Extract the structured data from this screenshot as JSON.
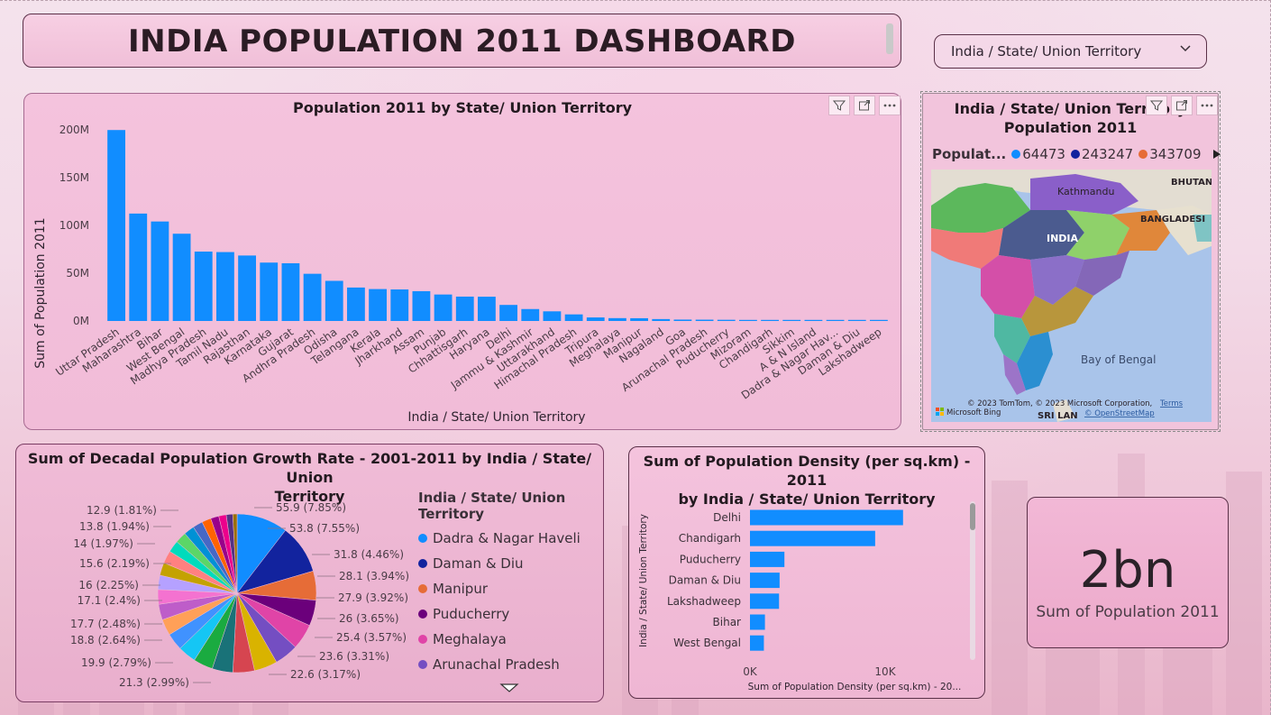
{
  "dashboard": {
    "title": "INDIA POPULATION 2011 DASHBOARD"
  },
  "slicer": {
    "label": "India / State/ Union Territory"
  },
  "bar_chart": {
    "title": "Population 2011 by State/ Union Territory",
    "xlabel": "India / State/ Union Territory",
    "ylabel": "Sum of Population 2011"
  },
  "map": {
    "title_line1": "India / State/ Union Territory",
    "title_line2": "Population 2011",
    "legend_title": "Populat...",
    "legend_items": [
      {
        "label": "64473",
        "color": "#118dff"
      },
      {
        "label": "243247",
        "color": "#12239e"
      },
      {
        "label": "343709",
        "color": "#e66c37"
      }
    ],
    "labels": {
      "kathmandu": "Kathmandu",
      "bhutan": "BHUTAN",
      "india": "INDIA",
      "bangladesh": "BANGLADESI",
      "bay": "Bay of Bengal",
      "srilanka": "SRI LAN"
    },
    "attribution": "© 2023 TomTom, © 2023 Microsoft Corporation,",
    "terms": "Terms",
    "osm": "© OpenStreetMap",
    "bing": "Microsoft Bing"
  },
  "pie_chart": {
    "title_line1": "Sum of Decadal Population Growth Rate - 2001-2011 by India / State/ Union",
    "title_line2": "Territory",
    "legend_title": "India / State/ Union Territory",
    "legend_items": [
      {
        "label": "Dadra & Nagar Haveli",
        "color": "#118dff"
      },
      {
        "label": "Daman & Diu",
        "color": "#12239e"
      },
      {
        "label": "Manipur",
        "color": "#e66c37"
      },
      {
        "label": "Puducherry",
        "color": "#6b007b"
      },
      {
        "label": "Meghalaya",
        "color": "#e044a7"
      },
      {
        "label": "Arunachal Pradesh",
        "color": "#744ec2"
      }
    ],
    "right_labels": [
      "55.9 (7.85%)",
      "53.8 (7.55%)",
      "31.8 (4.46%)",
      "28.1 (3.94%)",
      "27.9 (3.92%)",
      "26 (3.65%)",
      "25.4 (3.57%)",
      "23.6 (3.31%)",
      "22.6 (3.17%)"
    ],
    "left_labels": [
      "12.9 (1.81%)",
      "13.8 (1.94%)",
      "14 (1.97%)",
      "15.6 (2.19%)",
      "16 (2.25%)",
      "17.1 (2.4%)",
      "17.7 (2.48%)",
      "18.8 (2.64%)",
      "19.9 (2.79%)",
      "21.3 (2.99%)"
    ]
  },
  "density_chart": {
    "title_line1": "Sum of Population Density (per sq.km) - 2011",
    "title_line2": "by India / State/ Union Territory",
    "ylabel": "India / State/ Union Territory",
    "xlabel": "Sum of Population Density (per sq.km) - 20...",
    "ticks": [
      "0K",
      "10K"
    ]
  },
  "kpi": {
    "value": "2bn",
    "label": "Sum of Population 2011"
  },
  "chart_data": [
    {
      "type": "bar",
      "title": "Population 2011 by State/ Union Territory",
      "xlabel": "India / State/ Union Territory",
      "ylabel": "Sum of Population 2011",
      "ylim": [
        0,
        200000000
      ],
      "yticks": [
        "0M",
        "50M",
        "100M",
        "150M",
        "200M"
      ],
      "grid": false,
      "color": "#118dff",
      "categories": [
        "Uttar Pradesh",
        "Maharashtra",
        "Bihar",
        "West Bengal",
        "Madhya Pradesh",
        "Tamil Nadu",
        "Rajasthan",
        "Karnataka",
        "Gujarat",
        "Andhra Pradesh",
        "Odisha",
        "Telangana",
        "Kerala",
        "Jharkhand",
        "Assam",
        "Punjab",
        "Chhattisgarh",
        "Haryana",
        "Delhi",
        "Jammu & Kashmir",
        "Uttarakhand",
        "Himachal Pradesh",
        "Tripura",
        "Meghalaya",
        "Manipur",
        "Nagaland",
        "Goa",
        "Arunachal Pradesh",
        "Puducherry",
        "Mizoram",
        "Chandigarh",
        "Sikkim",
        "A & N Island",
        "Dadra & Nagar Hav...",
        "Daman & Diu",
        "Lakshadweep"
      ],
      "values": [
        199800000,
        112400000,
        104100000,
        91300000,
        72600000,
        72100000,
        68500000,
        61100000,
        60400000,
        49400000,
        42000000,
        35000000,
        33400000,
        33000000,
        31200000,
        27700000,
        25500000,
        25400000,
        16800000,
        12500000,
        10100000,
        6900000,
        3700000,
        3000000,
        2900000,
        2000000,
        1460000,
        1380000,
        1250000,
        1100000,
        1050000,
        610000,
        380000,
        343709,
        243247,
        64473
      ]
    },
    {
      "type": "pie",
      "title": "Sum of Decadal Population Growth Rate - 2001-2011 by India / State/ Union Territory",
      "values": [
        55.9,
        53.8,
        31.8,
        28.1,
        27.9,
        26,
        25.4,
        23.6,
        22.6,
        21.3,
        19.9,
        18.8,
        17.7,
        17.1,
        16,
        15.6,
        14,
        13.8,
        12.9,
        12.3,
        11.5,
        10.9,
        10.0,
        9.0,
        8.2,
        7.0,
        4.7
      ]
    },
    {
      "type": "bar",
      "orientation": "horizontal",
      "title": "Sum of Population Density (per sq.km) - 2011 by India / State/ Union Territory",
      "xlabel": "Sum of Population Density (per sq.km) - 20...",
      "ylabel": "India / State/ Union Territory",
      "xlim": [
        0,
        16000
      ],
      "xticks": [
        "0K",
        "10K"
      ],
      "categories": [
        "Delhi",
        "Chandigarh",
        "Puducherry",
        "Daman & Diu",
        "Lakshadweep",
        "Bihar",
        "West Bengal"
      ],
      "values": [
        11320,
        9258,
        2547,
        2191,
        2149,
        1106,
        1028
      ]
    }
  ]
}
